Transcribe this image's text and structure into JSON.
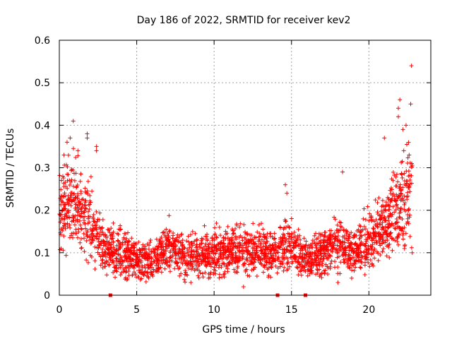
{
  "chart_data": {
    "type": "scatter",
    "title": "Day 186 of 2022, SRMTID for receiver kev2",
    "xlabel": "GPS time / hours",
    "ylabel": "SRMTID / TECUs",
    "xlim": [
      0,
      24
    ],
    "ylim": [
      0,
      0.6
    ],
    "xticks": [
      0,
      5,
      10,
      15,
      20
    ],
    "yticks": [
      0,
      0.1,
      0.2,
      0.3,
      0.4,
      0.5,
      0.6
    ],
    "xtick_labels": [
      "0",
      "5",
      "10",
      "15",
      "20"
    ],
    "ytick_labels": [
      "0",
      "0.1",
      "0.2",
      "0.3",
      "0.4",
      "0.5",
      "0.6"
    ],
    "grid": true,
    "marker": "+",
    "color": "#ff0000",
    "envelope": [
      {
        "x": 0.0,
        "base": 0.2,
        "spread": 0.08
      },
      {
        "x": 1.0,
        "base": 0.22,
        "spread": 0.09
      },
      {
        "x": 2.0,
        "base": 0.17,
        "spread": 0.08
      },
      {
        "x": 3.0,
        "base": 0.11,
        "spread": 0.05
      },
      {
        "x": 4.0,
        "base": 0.1,
        "spread": 0.05
      },
      {
        "x": 5.0,
        "base": 0.08,
        "spread": 0.04
      },
      {
        "x": 6.0,
        "base": 0.08,
        "spread": 0.04
      },
      {
        "x": 7.0,
        "base": 0.12,
        "spread": 0.05
      },
      {
        "x": 8.0,
        "base": 0.09,
        "spread": 0.04
      },
      {
        "x": 10.0,
        "base": 0.1,
        "spread": 0.05
      },
      {
        "x": 12.0,
        "base": 0.11,
        "spread": 0.05
      },
      {
        "x": 14.0,
        "base": 0.1,
        "spread": 0.05
      },
      {
        "x": 15.0,
        "base": 0.12,
        "spread": 0.05
      },
      {
        "x": 16.0,
        "base": 0.08,
        "spread": 0.04
      },
      {
        "x": 17.0,
        "base": 0.1,
        "spread": 0.05
      },
      {
        "x": 18.0,
        "base": 0.13,
        "spread": 0.06
      },
      {
        "x": 19.0,
        "base": 0.1,
        "spread": 0.05
      },
      {
        "x": 20.0,
        "base": 0.13,
        "spread": 0.06
      },
      {
        "x": 21.0,
        "base": 0.16,
        "spread": 0.07
      },
      {
        "x": 22.0,
        "base": 0.21,
        "spread": 0.09
      },
      {
        "x": 22.8,
        "base": 0.25,
        "spread": 0.1
      }
    ],
    "point_count": 2600,
    "outliers": [
      {
        "x": 0.9,
        "y": 0.41
      },
      {
        "x": 0.7,
        "y": 0.37
      },
      {
        "x": 0.5,
        "y": 0.36
      },
      {
        "x": 1.8,
        "y": 0.38
      },
      {
        "x": 1.8,
        "y": 0.37
      },
      {
        "x": 2.4,
        "y": 0.35
      },
      {
        "x": 2.4,
        "y": 0.34
      },
      {
        "x": 0.3,
        "y": 0.33
      },
      {
        "x": 1.2,
        "y": 0.34
      },
      {
        "x": 11.9,
        "y": 0.02
      },
      {
        "x": 8.5,
        "y": 0.03
      },
      {
        "x": 14.6,
        "y": 0.26
      },
      {
        "x": 14.7,
        "y": 0.24
      },
      {
        "x": 18.0,
        "y": 0.03
      },
      {
        "x": 18.3,
        "y": 0.29
      },
      {
        "x": 21.0,
        "y": 0.37
      },
      {
        "x": 21.9,
        "y": 0.44
      },
      {
        "x": 22.0,
        "y": 0.46
      },
      {
        "x": 21.9,
        "y": 0.42
      },
      {
        "x": 22.2,
        "y": 0.39
      },
      {
        "x": 22.4,
        "y": 0.4
      },
      {
        "x": 22.7,
        "y": 0.45
      },
      {
        "x": 22.75,
        "y": 0.54
      },
      {
        "x": 22.6,
        "y": 0.33
      },
      {
        "x": 22.8,
        "y": 0.1
      },
      {
        "x": 22.3,
        "y": 0.11
      }
    ],
    "gap_markers": [
      3.3,
      14.1,
      15.9
    ]
  }
}
